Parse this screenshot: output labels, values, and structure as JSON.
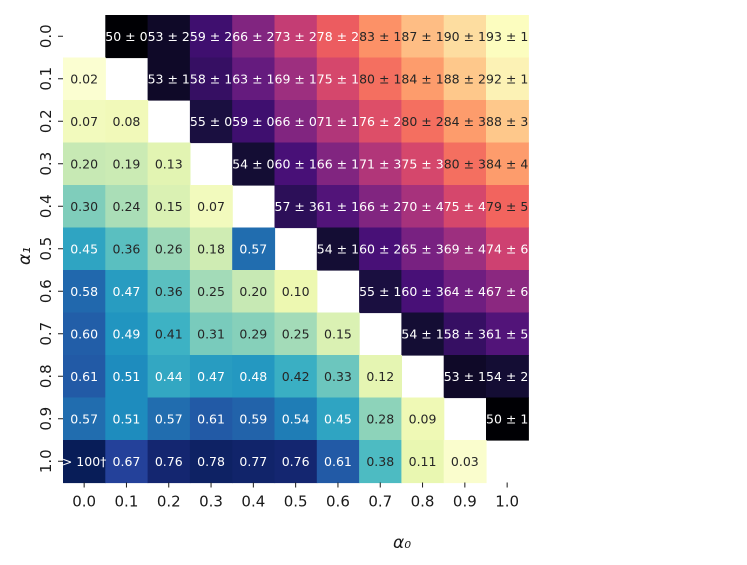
{
  "chart_data": {
    "type": "heatmap",
    "xlabel": "α₀",
    "ylabel": "α₁",
    "x_ticks": [
      "0.0",
      "0.1",
      "0.2",
      "0.3",
      "0.4",
      "0.5",
      "0.6",
      "0.7",
      "0.8",
      "0.9",
      "1.0"
    ],
    "y_ticks": [
      "0.0",
      "0.1",
      "0.2",
      "0.3",
      "0.4",
      "0.5",
      "0.6",
      "0.7",
      "0.8",
      "0.9",
      "1.0"
    ],
    "upper_triangle": {
      "colormap": "magma",
      "value_range": [
        50,
        93
      ],
      "cells": [
        {
          "row": 0,
          "col": 1,
          "value": 50,
          "label": "50 ± 0"
        },
        {
          "row": 0,
          "col": 2,
          "value": 53,
          "label": "53 ± 2"
        },
        {
          "row": 0,
          "col": 3,
          "value": 59,
          "label": "59 ± 2"
        },
        {
          "row": 0,
          "col": 4,
          "value": 66,
          "label": "66 ± 2"
        },
        {
          "row": 0,
          "col": 5,
          "value": 73,
          "label": "73 ± 2"
        },
        {
          "row": 0,
          "col": 6,
          "value": 78,
          "label": "78 ± 2"
        },
        {
          "row": 0,
          "col": 7,
          "value": 83,
          "label": "83 ± 1"
        },
        {
          "row": 0,
          "col": 8,
          "value": 87,
          "label": "87 ± 1"
        },
        {
          "row": 0,
          "col": 9,
          "value": 90,
          "label": "90 ± 1"
        },
        {
          "row": 0,
          "col": 10,
          "value": 93,
          "label": "93 ± 1"
        },
        {
          "row": 1,
          "col": 2,
          "value": 53,
          "label": "53 ± 1"
        },
        {
          "row": 1,
          "col": 3,
          "value": 58,
          "label": "58 ± 1"
        },
        {
          "row": 1,
          "col": 4,
          "value": 63,
          "label": "63 ± 1"
        },
        {
          "row": 1,
          "col": 5,
          "value": 69,
          "label": "69 ± 1"
        },
        {
          "row": 1,
          "col": 6,
          "value": 75,
          "label": "75 ± 1"
        },
        {
          "row": 1,
          "col": 7,
          "value": 80,
          "label": "80 ± 1"
        },
        {
          "row": 1,
          "col": 8,
          "value": 84,
          "label": "84 ± 1"
        },
        {
          "row": 1,
          "col": 9,
          "value": 88,
          "label": "88 ± 2"
        },
        {
          "row": 1,
          "col": 10,
          "value": 92,
          "label": "92 ± 1"
        },
        {
          "row": 2,
          "col": 3,
          "value": 55,
          "label": "55 ± 0"
        },
        {
          "row": 2,
          "col": 4,
          "value": 59,
          "label": "59 ± 0"
        },
        {
          "row": 2,
          "col": 5,
          "value": 66,
          "label": "66 ± 0"
        },
        {
          "row": 2,
          "col": 6,
          "value": 71,
          "label": "71 ± 1"
        },
        {
          "row": 2,
          "col": 7,
          "value": 76,
          "label": "76 ± 2"
        },
        {
          "row": 2,
          "col": 8,
          "value": 80,
          "label": "80 ± 2"
        },
        {
          "row": 2,
          "col": 9,
          "value": 84,
          "label": "84 ± 3"
        },
        {
          "row": 2,
          "col": 10,
          "value": 88,
          "label": "88 ± 3"
        },
        {
          "row": 3,
          "col": 4,
          "value": 54,
          "label": "54 ± 0"
        },
        {
          "row": 3,
          "col": 5,
          "value": 60,
          "label": "60 ± 1"
        },
        {
          "row": 3,
          "col": 6,
          "value": 66,
          "label": "66 ± 1"
        },
        {
          "row": 3,
          "col": 7,
          "value": 71,
          "label": "71 ± 3"
        },
        {
          "row": 3,
          "col": 8,
          "value": 75,
          "label": "75 ± 3"
        },
        {
          "row": 3,
          "col": 9,
          "value": 80,
          "label": "80 ± 3"
        },
        {
          "row": 3,
          "col": 10,
          "value": 84,
          "label": "84 ± 4"
        },
        {
          "row": 4,
          "col": 5,
          "value": 57,
          "label": "57 ± 3"
        },
        {
          "row": 4,
          "col": 6,
          "value": 61,
          "label": "61 ± 1"
        },
        {
          "row": 4,
          "col": 7,
          "value": 66,
          "label": "66 ± 2"
        },
        {
          "row": 4,
          "col": 8,
          "value": 70,
          "label": "70 ± 4"
        },
        {
          "row": 4,
          "col": 9,
          "value": 75,
          "label": "75 ± 4"
        },
        {
          "row": 4,
          "col": 10,
          "value": 79,
          "label": "79 ± 5"
        },
        {
          "row": 5,
          "col": 6,
          "value": 54,
          "label": "54 ± 1"
        },
        {
          "row": 5,
          "col": 7,
          "value": 60,
          "label": "60 ± 2"
        },
        {
          "row": 5,
          "col": 8,
          "value": 65,
          "label": "65 ± 3"
        },
        {
          "row": 5,
          "col": 9,
          "value": 69,
          "label": "69 ± 4"
        },
        {
          "row": 5,
          "col": 10,
          "value": 74,
          "label": "74 ± 6"
        },
        {
          "row": 6,
          "col": 7,
          "value": 55,
          "label": "55 ± 1"
        },
        {
          "row": 6,
          "col": 8,
          "value": 60,
          "label": "60 ± 3"
        },
        {
          "row": 6,
          "col": 9,
          "value": 64,
          "label": "64 ± 4"
        },
        {
          "row": 6,
          "col": 10,
          "value": 67,
          "label": "67 ± 6"
        },
        {
          "row": 7,
          "col": 8,
          "value": 54,
          "label": "54 ± 1"
        },
        {
          "row": 7,
          "col": 9,
          "value": 58,
          "label": "58 ± 3"
        },
        {
          "row": 7,
          "col": 10,
          "value": 61,
          "label": "61 ± 5"
        },
        {
          "row": 8,
          "col": 9,
          "value": 53,
          "label": "53 ± 1"
        },
        {
          "row": 8,
          "col": 10,
          "value": 54,
          "label": "54 ± 2"
        },
        {
          "row": 9,
          "col": 10,
          "value": 50,
          "label": "50 ± 1"
        }
      ]
    },
    "lower_triangle": {
      "colormap": "YlGnBu",
      "value_range": [
        0.0,
        0.8
      ],
      "cells": [
        {
          "row": 1,
          "col": 0,
          "value": 0.02,
          "label": "0.02"
        },
        {
          "row": 2,
          "col": 0,
          "value": 0.07,
          "label": "0.07"
        },
        {
          "row": 2,
          "col": 1,
          "value": 0.08,
          "label": "0.08"
        },
        {
          "row": 3,
          "col": 0,
          "value": 0.2,
          "label": "0.20"
        },
        {
          "row": 3,
          "col": 1,
          "value": 0.19,
          "label": "0.19"
        },
        {
          "row": 3,
          "col": 2,
          "value": 0.13,
          "label": "0.13"
        },
        {
          "row": 4,
          "col": 0,
          "value": 0.3,
          "label": "0.30"
        },
        {
          "row": 4,
          "col": 1,
          "value": 0.24,
          "label": "0.24"
        },
        {
          "row": 4,
          "col": 2,
          "value": 0.15,
          "label": "0.15"
        },
        {
          "row": 4,
          "col": 3,
          "value": 0.07,
          "label": "0.07"
        },
        {
          "row": 5,
          "col": 0,
          "value": 0.45,
          "label": "0.45"
        },
        {
          "row": 5,
          "col": 1,
          "value": 0.36,
          "label": "0.36"
        },
        {
          "row": 5,
          "col": 2,
          "value": 0.26,
          "label": "0.26"
        },
        {
          "row": 5,
          "col": 3,
          "value": 0.18,
          "label": "0.18"
        },
        {
          "row": 5,
          "col": 4,
          "value": 0.57,
          "label": "0.57"
        },
        {
          "row": 6,
          "col": 0,
          "value": 0.58,
          "label": "0.58"
        },
        {
          "row": 6,
          "col": 1,
          "value": 0.47,
          "label": "0.47"
        },
        {
          "row": 6,
          "col": 2,
          "value": 0.36,
          "label": "0.36"
        },
        {
          "row": 6,
          "col": 3,
          "value": 0.25,
          "label": "0.25"
        },
        {
          "row": 6,
          "col": 4,
          "value": 0.2,
          "label": "0.20"
        },
        {
          "row": 6,
          "col": 5,
          "value": 0.1,
          "label": "0.10"
        },
        {
          "row": 7,
          "col": 0,
          "value": 0.6,
          "label": "0.60"
        },
        {
          "row": 7,
          "col": 1,
          "value": 0.49,
          "label": "0.49"
        },
        {
          "row": 7,
          "col": 2,
          "value": 0.41,
          "label": "0.41"
        },
        {
          "row": 7,
          "col": 3,
          "value": 0.31,
          "label": "0.31"
        },
        {
          "row": 7,
          "col": 4,
          "value": 0.29,
          "label": "0.29"
        },
        {
          "row": 7,
          "col": 5,
          "value": 0.25,
          "label": "0.25"
        },
        {
          "row": 7,
          "col": 6,
          "value": 0.15,
          "label": "0.15"
        },
        {
          "row": 8,
          "col": 0,
          "value": 0.61,
          "label": "0.61"
        },
        {
          "row": 8,
          "col": 1,
          "value": 0.51,
          "label": "0.51"
        },
        {
          "row": 8,
          "col": 2,
          "value": 0.44,
          "label": "0.44"
        },
        {
          "row": 8,
          "col": 3,
          "value": 0.47,
          "label": "0.47"
        },
        {
          "row": 8,
          "col": 4,
          "value": 0.48,
          "label": "0.48"
        },
        {
          "row": 8,
          "col": 5,
          "value": 0.42,
          "label": "0.42"
        },
        {
          "row": 8,
          "col": 6,
          "value": 0.33,
          "label": "0.33"
        },
        {
          "row": 8,
          "col": 7,
          "value": 0.12,
          "label": "0.12"
        },
        {
          "row": 9,
          "col": 0,
          "value": 0.57,
          "label": "0.57"
        },
        {
          "row": 9,
          "col": 1,
          "value": 0.51,
          "label": "0.51"
        },
        {
          "row": 9,
          "col": 2,
          "value": 0.57,
          "label": "0.57"
        },
        {
          "row": 9,
          "col": 3,
          "value": 0.61,
          "label": "0.61"
        },
        {
          "row": 9,
          "col": 4,
          "value": 0.59,
          "label": "0.59"
        },
        {
          "row": 9,
          "col": 5,
          "value": 0.54,
          "label": "0.54"
        },
        {
          "row": 9,
          "col": 6,
          "value": 0.45,
          "label": "0.45"
        },
        {
          "row": 9,
          "col": 7,
          "value": 0.28,
          "label": "0.28"
        },
        {
          "row": 9,
          "col": 8,
          "value": 0.09,
          "label": "0.09"
        },
        {
          "row": 10,
          "col": 0,
          "value": null,
          "label": "> 100†",
          "display_as": "max"
        },
        {
          "row": 10,
          "col": 1,
          "value": 0.67,
          "label": "0.67"
        },
        {
          "row": 10,
          "col": 2,
          "value": 0.76,
          "label": "0.76"
        },
        {
          "row": 10,
          "col": 3,
          "value": 0.78,
          "label": "0.78"
        },
        {
          "row": 10,
          "col": 4,
          "value": 0.77,
          "label": "0.77"
        },
        {
          "row": 10,
          "col": 5,
          "value": 0.76,
          "label": "0.76"
        },
        {
          "row": 10,
          "col": 6,
          "value": 0.61,
          "label": "0.61"
        },
        {
          "row": 10,
          "col": 7,
          "value": 0.38,
          "label": "0.38"
        },
        {
          "row": 10,
          "col": 8,
          "value": 0.11,
          "label": "0.11"
        },
        {
          "row": 10,
          "col": 9,
          "value": 0.03,
          "label": "0.03"
        }
      ]
    },
    "diagonal": "empty",
    "grid": false,
    "legend": "none"
  }
}
